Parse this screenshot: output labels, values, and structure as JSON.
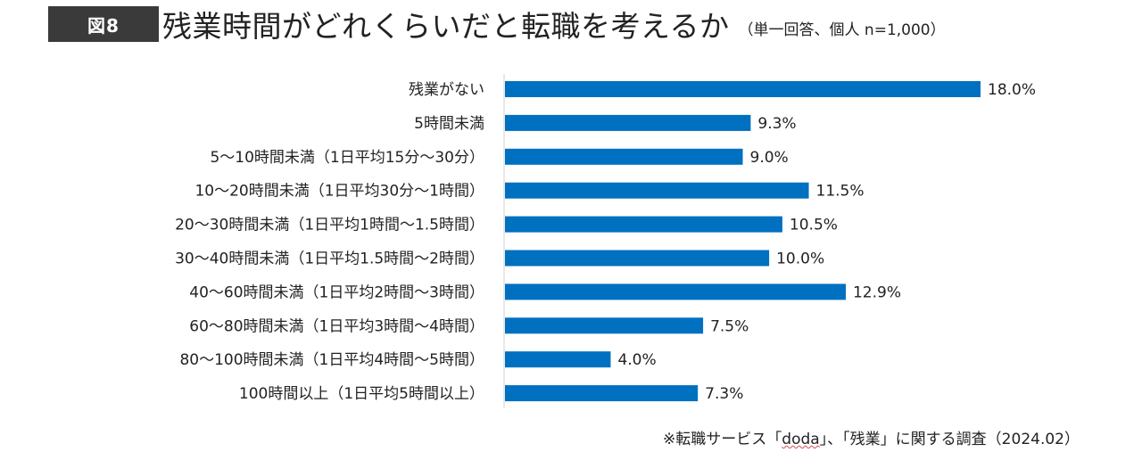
{
  "header": {
    "badge": "図8",
    "title": "残業時間がどれくらいだと転職を考えるか",
    "subtitle": "（単一回答、個人 n=1,000）"
  },
  "colors": {
    "bar": "#0070c0",
    "badge_bg": "#3a3a3a",
    "axis": "#d0d0d0"
  },
  "chart_data": {
    "type": "bar",
    "orientation": "horizontal",
    "title": "残業時間がどれくらいだと転職を考えるか",
    "categories": [
      "残業がない",
      "5時間未満",
      "5〜10時間未満（1日平均15分〜30分）",
      "10〜20時間未満（1日平均30分〜1時間）",
      "20〜30時間未満（1日平均1時間〜1.5時間）",
      "30〜40時間未満（1日平均1.5時間〜2時間）",
      "40〜60時間未満（1日平均2時間〜3時間）",
      "60〜80時間未満（1日平均3時間〜4時間）",
      "80〜100時間未満（1日平均4時間〜5時間）",
      "100時間以上（1日平均5時間以上）"
    ],
    "values": [
      18.0,
      9.3,
      9.0,
      11.5,
      10.5,
      10.0,
      12.9,
      7.5,
      4.0,
      7.3
    ],
    "value_labels": [
      "18.0%",
      "9.3%",
      "9.0%",
      "11.5%",
      "10.5%",
      "10.0%",
      "12.9%",
      "7.5%",
      "4.0%",
      "7.3%"
    ],
    "unit": "%",
    "xlim": [
      0,
      18.0
    ],
    "xlabel": "",
    "ylabel": "",
    "grid": false,
    "legend": "none"
  },
  "source": {
    "prefix": "※転職サービス「",
    "brand": "doda",
    "suffix": "」、「残業」に関する調査（2024.02）"
  }
}
